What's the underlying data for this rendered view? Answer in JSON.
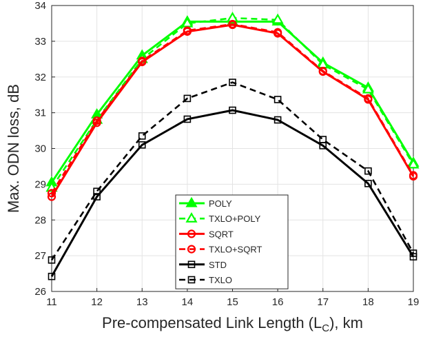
{
  "chart_data": {
    "type": "line",
    "xlabel_main": "Pre-compensated Link Length (L",
    "xlabel_sub": "C",
    "xlabel_tail": "), km",
    "ylabel": "Max. ODN loss, dB",
    "xlim": [
      11,
      19
    ],
    "ylim": [
      26,
      34
    ],
    "xticks": [
      "11",
      "12",
      "13",
      "14",
      "15",
      "16",
      "17",
      "18",
      "19"
    ],
    "yticks": [
      "26",
      "27",
      "28",
      "29",
      "30",
      "31",
      "32",
      "33",
      "34"
    ],
    "grid": true,
    "legend_position": "bottom-center",
    "x": [
      11,
      12,
      13,
      14,
      15,
      16,
      17,
      18,
      19
    ],
    "series": [
      {
        "name": "POLY",
        "values": [
          29.05,
          30.95,
          32.6,
          33.55,
          33.55,
          33.55,
          32.4,
          31.7,
          29.6
        ],
        "color": "#00ff00",
        "dash": "solid",
        "marker": "triangle-filled"
      },
      {
        "name": "TXLO+POLY",
        "values": [
          28.9,
          30.8,
          32.5,
          33.5,
          33.65,
          33.6,
          32.35,
          31.65,
          29.55
        ],
        "color": "#00ff00",
        "dash": "dashed",
        "marker": "triangle-open"
      },
      {
        "name": "SQRT",
        "values": [
          28.65,
          30.72,
          32.42,
          33.27,
          33.46,
          33.22,
          32.15,
          31.37,
          29.22
        ],
        "color": "#ff0000",
        "dash": "solid",
        "marker": "circle-open"
      },
      {
        "name": "TXLO+SQRT",
        "values": [
          28.75,
          30.78,
          32.45,
          33.3,
          33.48,
          33.25,
          32.17,
          31.4,
          29.25
        ],
        "color": "#ff0000",
        "dash": "dashed",
        "marker": "circle-open"
      },
      {
        "name": "STD",
        "values": [
          26.42,
          28.65,
          30.1,
          30.82,
          31.07,
          30.8,
          30.08,
          29.02,
          26.97
        ],
        "color": "#000000",
        "dash": "solid",
        "marker": "square-open"
      },
      {
        "name": "TXLO",
        "values": [
          26.88,
          28.8,
          30.35,
          31.4,
          31.85,
          31.37,
          30.25,
          29.37,
          27.07
        ],
        "color": "#000000",
        "dash": "dashed",
        "marker": "square-open"
      }
    ]
  }
}
